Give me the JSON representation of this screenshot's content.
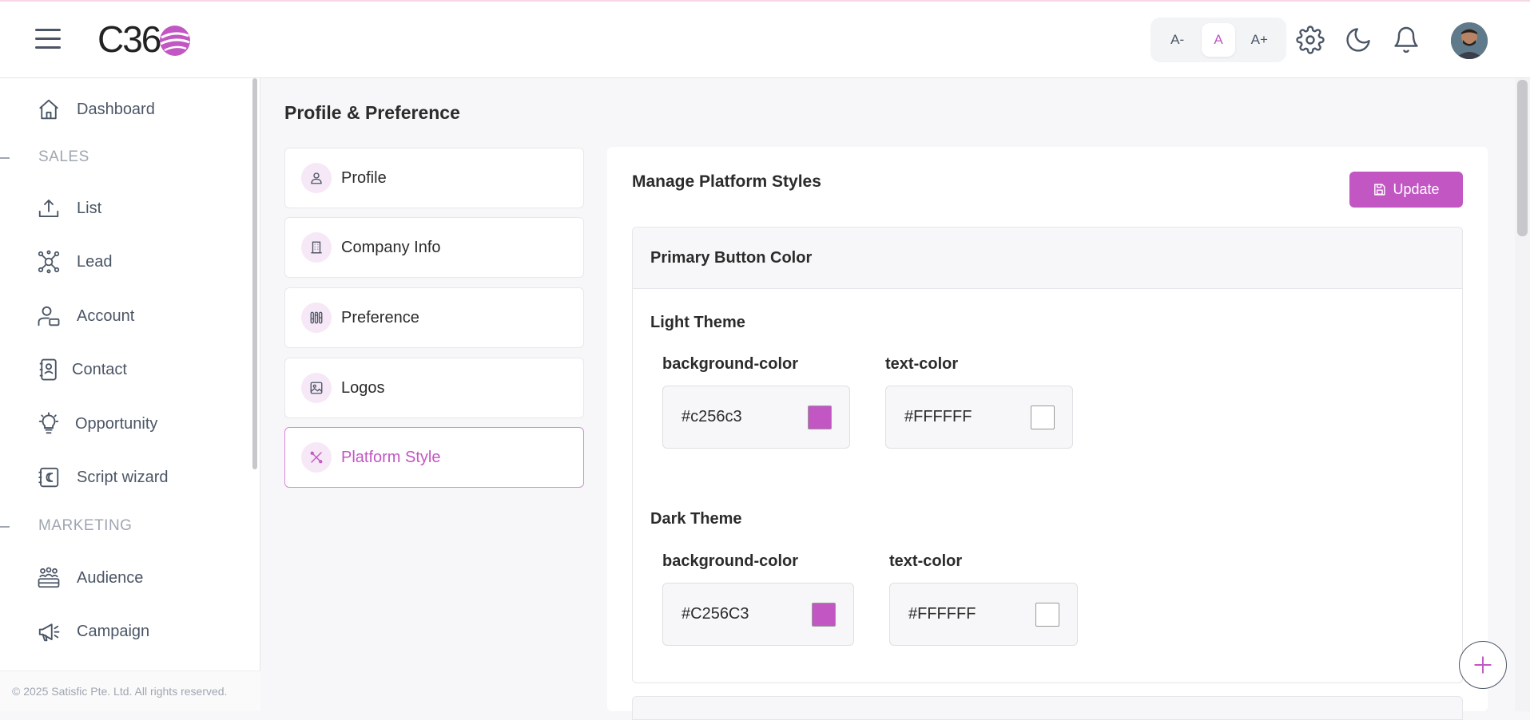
{
  "header": {
    "logo_text": "C36",
    "font_size": {
      "decrease": "A-",
      "normal": "A",
      "increase": "A+"
    },
    "icons": [
      "settings-icon",
      "moon-icon",
      "bell-icon"
    ]
  },
  "sidebar": {
    "items": [
      {
        "label": "Dashboard",
        "icon": "home-icon"
      },
      {
        "label": "List",
        "icon": "upload-icon"
      },
      {
        "label": "Lead",
        "icon": "network-icon"
      },
      {
        "label": "Account",
        "icon": "user-card-icon"
      },
      {
        "label": "Contact",
        "icon": "contact-book-icon"
      },
      {
        "label": "Opportunity",
        "icon": "lightbulb-icon"
      },
      {
        "label": "Script wizard",
        "icon": "script-icon"
      },
      {
        "label": "Audience",
        "icon": "audience-icon"
      },
      {
        "label": "Campaign",
        "icon": "megaphone-icon"
      }
    ],
    "sections": {
      "sales": "SALES",
      "marketing": "MARKETING"
    },
    "copyright": "© 2025 Satisfic Pte. Ltd. All rights reserved."
  },
  "page": {
    "title": "Profile & Preference",
    "menu": [
      {
        "label": "Profile",
        "icon": "user-icon"
      },
      {
        "label": "Company Info",
        "icon": "building-icon"
      },
      {
        "label": "Preference",
        "icon": "sliders-icon"
      },
      {
        "label": "Logos",
        "icon": "image-icon"
      },
      {
        "label": "Platform Style",
        "icon": "tools-icon",
        "active": true
      }
    ]
  },
  "panel": {
    "title": "Manage Platform Styles",
    "update_label": "Update",
    "section_title": "Primary Button Color",
    "light": {
      "title": "Light Theme",
      "bg_label": "background-color",
      "bg_value": "#c256c3",
      "text_label": "text-color",
      "text_value": "#FFFFFF"
    },
    "dark": {
      "title": "Dark Theme",
      "bg_label": "background-color",
      "bg_value": "#C256C3",
      "text_label": "text-color",
      "text_value": "#FFFFFF"
    }
  },
  "colors": {
    "accent": "#c256c3",
    "text_muted": "#4a5565"
  }
}
